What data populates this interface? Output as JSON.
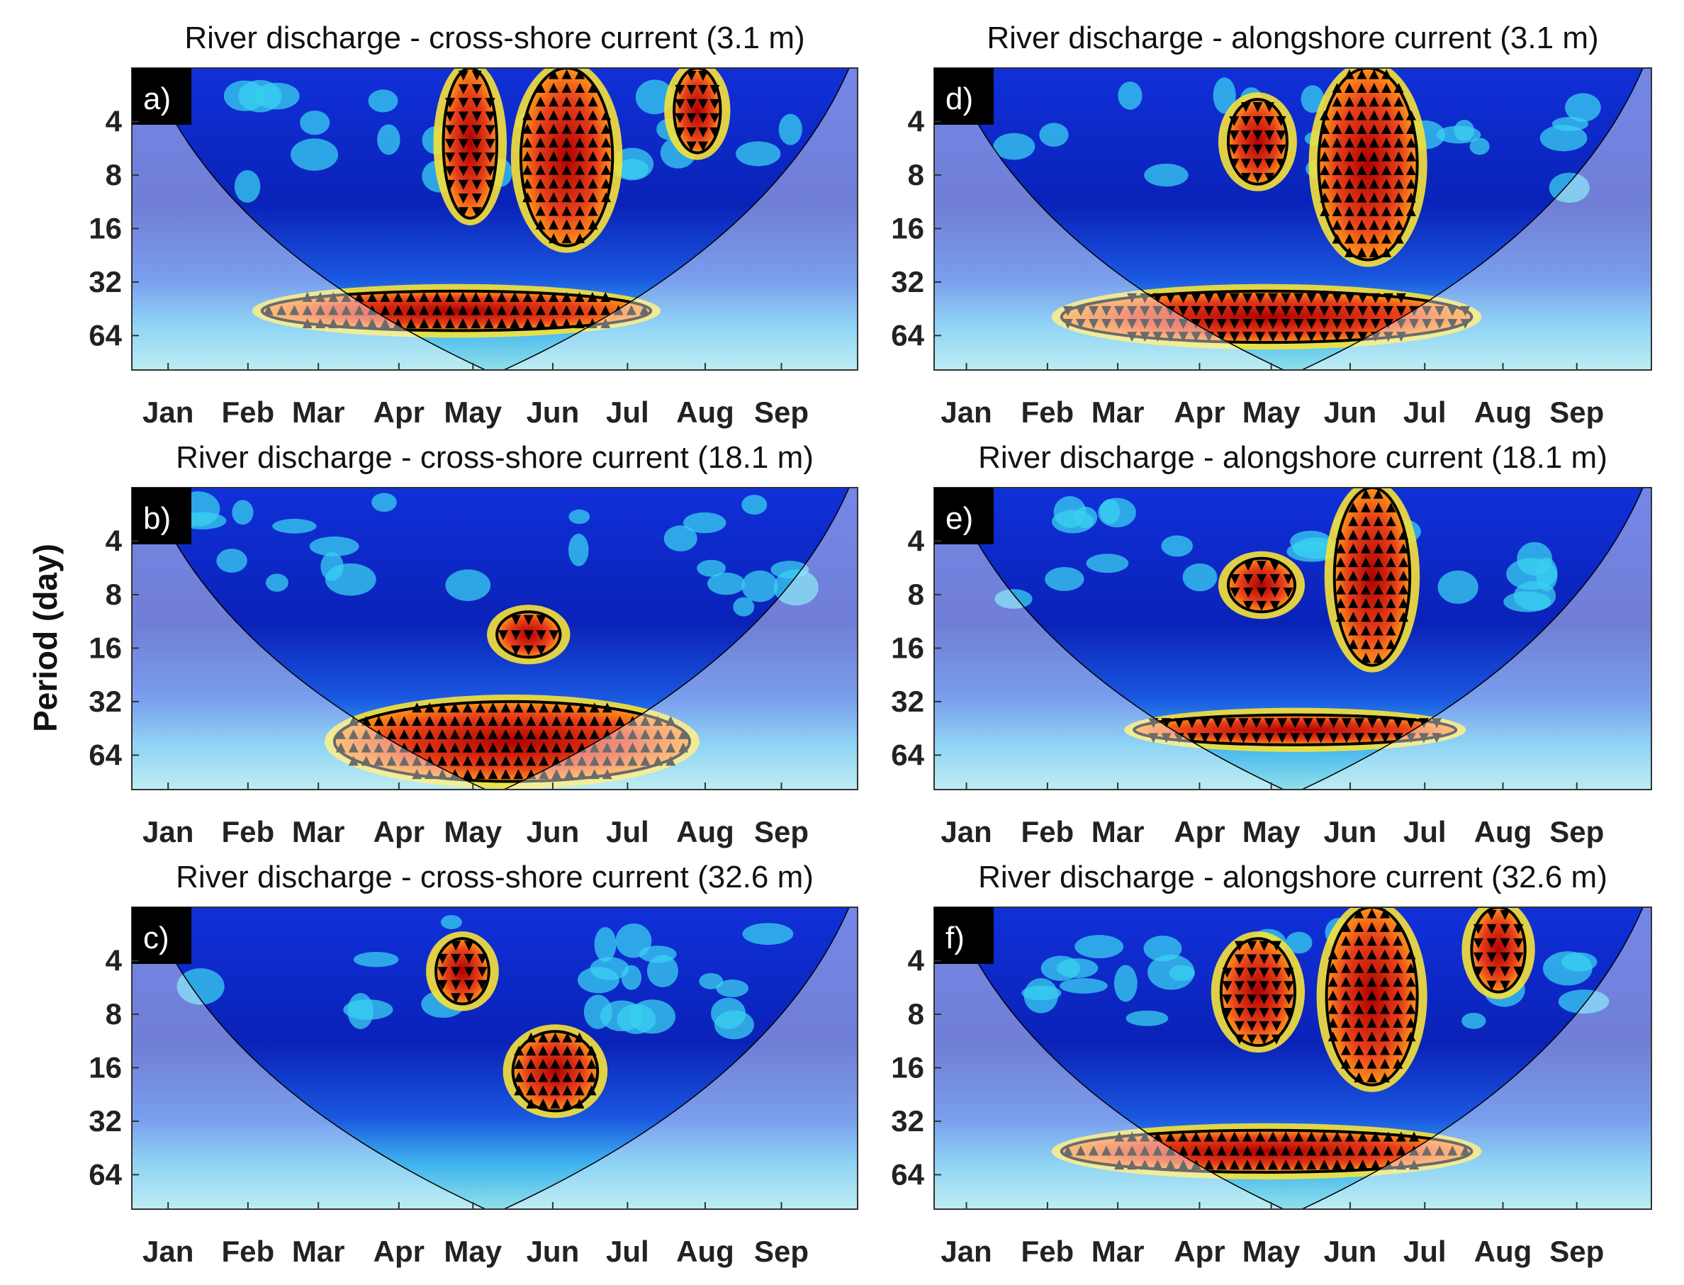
{
  "figure": {
    "ylabel": "Period (day)"
  },
  "chart_data": [
    {
      "type": "heatmap",
      "panel": "a)",
      "title": "River discharge - cross-shore current (3.1 m)",
      "xlabel": "",
      "ylabel": "Period (day)",
      "x_ticks": [
        "Jan",
        "Feb",
        "Mar",
        "Apr",
        "May",
        "Jun",
        "Jul",
        "Aug",
        "Sep"
      ],
      "y_ticks": [
        4,
        8,
        16,
        32,
        64
      ],
      "y_scale": "log2",
      "y_reversed": true,
      "ylim": [
        2,
        100
      ],
      "high_coherence_regions": [
        {
          "month_start": 4.6,
          "month_end": 5.3,
          "period_min": 2,
          "period_max": 14
        },
        {
          "month_start": 5.6,
          "month_end": 6.8,
          "period_min": 2,
          "period_max": 20
        },
        {
          "month_start": 7.6,
          "month_end": 8.2,
          "period_min": 2,
          "period_max": 6
        },
        {
          "month_start": 2.2,
          "month_end": 7.3,
          "period_min": 36,
          "period_max": 60
        }
      ]
    },
    {
      "type": "heatmap",
      "panel": "b)",
      "title": "River discharge - cross-shore current (18.1 m)",
      "xlabel": "",
      "ylabel": "Period (day)",
      "x_ticks": [
        "Jan",
        "Feb",
        "Mar",
        "Apr",
        "May",
        "Jun",
        "Jul",
        "Aug",
        "Sep"
      ],
      "y_ticks": [
        4,
        8,
        16,
        32,
        64
      ],
      "y_scale": "log2",
      "y_reversed": true,
      "ylim": [
        2,
        100
      ],
      "high_coherence_regions": [
        {
          "month_start": 5.3,
          "month_end": 6.1,
          "period_min": 10,
          "period_max": 18
        },
        {
          "month_start": 3.2,
          "month_end": 7.8,
          "period_min": 32,
          "period_max": 90
        }
      ]
    },
    {
      "type": "heatmap",
      "panel": "c)",
      "title": "River discharge - cross-shore current (32.6 m)",
      "xlabel": "",
      "ylabel": "Period (day)",
      "x_ticks": [
        "Jan",
        "Feb",
        "Mar",
        "Apr",
        "May",
        "Jun",
        "Jul",
        "Aug",
        "Sep"
      ],
      "y_ticks": [
        4,
        8,
        16,
        32,
        64
      ],
      "y_scale": "log2",
      "y_reversed": true,
      "ylim": [
        2,
        100
      ],
      "high_coherence_regions": [
        {
          "month_start": 4.5,
          "month_end": 5.2,
          "period_min": 3,
          "period_max": 7
        },
        {
          "month_start": 5.5,
          "month_end": 6.6,
          "period_min": 10,
          "period_max": 28
        }
      ]
    },
    {
      "type": "heatmap",
      "panel": "d)",
      "title": "River discharge - alongshore current (3.1 m)",
      "xlabel": "",
      "ylabel": "Period (day)",
      "x_ticks": [
        "Jan",
        "Feb",
        "Mar",
        "Apr",
        "May",
        "Jun",
        "Jul",
        "Aug",
        "Sep"
      ],
      "y_ticks": [
        4,
        8,
        16,
        32,
        64
      ],
      "y_scale": "log2",
      "y_reversed": true,
      "ylim": [
        2,
        100
      ],
      "high_coherence_regions": [
        {
          "month_start": 4.4,
          "month_end": 5.2,
          "period_min": 3,
          "period_max": 9
        },
        {
          "month_start": 5.6,
          "month_end": 6.9,
          "period_min": 2,
          "period_max": 24
        },
        {
          "month_start": 2.2,
          "month_end": 7.6,
          "period_min": 36,
          "period_max": 70
        }
      ]
    },
    {
      "type": "heatmap",
      "panel": "e)",
      "title": "River discharge - alongshore current (18.1 m)",
      "xlabel": "",
      "ylabel": "Period (day)",
      "x_ticks": [
        "Jan",
        "Feb",
        "Mar",
        "Apr",
        "May",
        "Jun",
        "Jul",
        "Aug",
        "Sep"
      ],
      "y_ticks": [
        4,
        8,
        16,
        32,
        64
      ],
      "y_scale": "log2",
      "y_reversed": true,
      "ylim": [
        2,
        100
      ],
      "high_coherence_regions": [
        {
          "month_start": 4.4,
          "month_end": 5.3,
          "period_min": 5,
          "period_max": 10
        },
        {
          "month_start": 5.8,
          "month_end": 6.8,
          "period_min": 2,
          "period_max": 20
        },
        {
          "month_start": 3.2,
          "month_end": 7.4,
          "period_min": 38,
          "period_max": 56
        }
      ]
    },
    {
      "type": "heatmap",
      "panel": "f)",
      "title": "River discharge - alongshore current (32.6 m)",
      "xlabel": "",
      "ylabel": "Period (day)",
      "x_ticks": [
        "Jan",
        "Feb",
        "Mar",
        "Apr",
        "May",
        "Jun",
        "Jul",
        "Aug",
        "Sep"
      ],
      "y_ticks": [
        4,
        8,
        16,
        32,
        64
      ],
      "y_scale": "log2",
      "y_reversed": true,
      "ylim": [
        2,
        100
      ],
      "high_coherence_regions": [
        {
          "month_start": 4.3,
          "month_end": 5.3,
          "period_min": 3,
          "period_max": 12
        },
        {
          "month_start": 5.7,
          "month_end": 6.9,
          "period_min": 2,
          "period_max": 20
        },
        {
          "month_start": 7.6,
          "month_end": 8.3,
          "period_min": 2,
          "period_max": 6
        },
        {
          "month_start": 2.2,
          "month_end": 7.6,
          "period_min": 36,
          "period_max": 62
        }
      ]
    }
  ]
}
